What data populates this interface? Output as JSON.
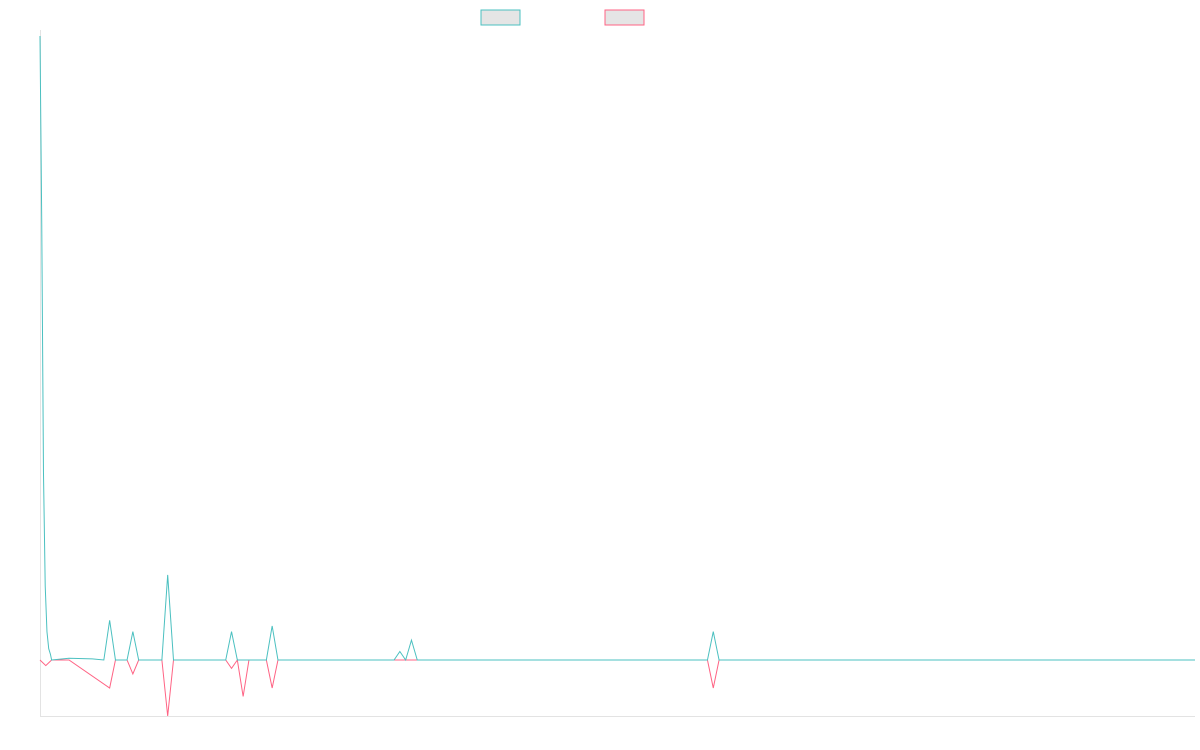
{
  "chart_data": {
    "type": "line",
    "title": "",
    "xlabel": "",
    "ylabel": "",
    "grid": false,
    "legend_position": "top-center",
    "x_count": 200,
    "ylim": [
      -10,
      110
    ],
    "series": [
      {
        "color": "#4bc0c0",
        "fill": "#e5e5e5",
        "points": [
          [
            0,
            110
          ],
          [
            0.3,
            77
          ],
          [
            0.6,
            33
          ],
          [
            0.9,
            13
          ],
          [
            1.2,
            5
          ],
          [
            1.5,
            2
          ],
          [
            1.8,
            1
          ],
          [
            2,
            0
          ],
          [
            5,
            0.3
          ],
          [
            9,
            0.2
          ],
          [
            11,
            0
          ],
          [
            12,
            7
          ],
          [
            13,
            0
          ],
          [
            14,
            0
          ],
          [
            15,
            0
          ],
          [
            16,
            5
          ],
          [
            17,
            0
          ],
          [
            21,
            0
          ],
          [
            22,
            15
          ],
          [
            23,
            0
          ],
          [
            32,
            0
          ],
          [
            33,
            5
          ],
          [
            34,
            0
          ],
          [
            35,
            0
          ],
          [
            36,
            0
          ],
          [
            37,
            0
          ],
          [
            38,
            0
          ],
          [
            39,
            0
          ],
          [
            40,
            6
          ],
          [
            41,
            0
          ],
          [
            61,
            0
          ],
          [
            62,
            1.5
          ],
          [
            63,
            0
          ],
          [
            64,
            3.5
          ],
          [
            65,
            0
          ],
          [
            115,
            0
          ],
          [
            116,
            5
          ],
          [
            117,
            0
          ],
          [
            199,
            0
          ]
        ]
      },
      {
        "color": "#ff6384",
        "fill": "#e5e5e5",
        "points": [
          [
            0,
            0
          ],
          [
            1,
            -1
          ],
          [
            2,
            0
          ],
          [
            5,
            0
          ],
          [
            12,
            -5
          ],
          [
            13,
            0
          ],
          [
            15,
            0
          ],
          [
            16,
            -2.5
          ],
          [
            17,
            0
          ],
          [
            21,
            0
          ],
          [
            22,
            -10
          ],
          [
            23,
            0
          ],
          [
            32,
            0
          ],
          [
            33,
            -1.5
          ],
          [
            34,
            0
          ],
          [
            35,
            -6.5
          ],
          [
            36,
            0
          ],
          [
            37,
            0
          ],
          [
            39,
            0
          ],
          [
            40,
            -5
          ],
          [
            41,
            0
          ],
          [
            115,
            0
          ],
          [
            116,
            -5
          ],
          [
            117,
            0
          ],
          [
            199,
            0
          ]
        ]
      }
    ]
  }
}
